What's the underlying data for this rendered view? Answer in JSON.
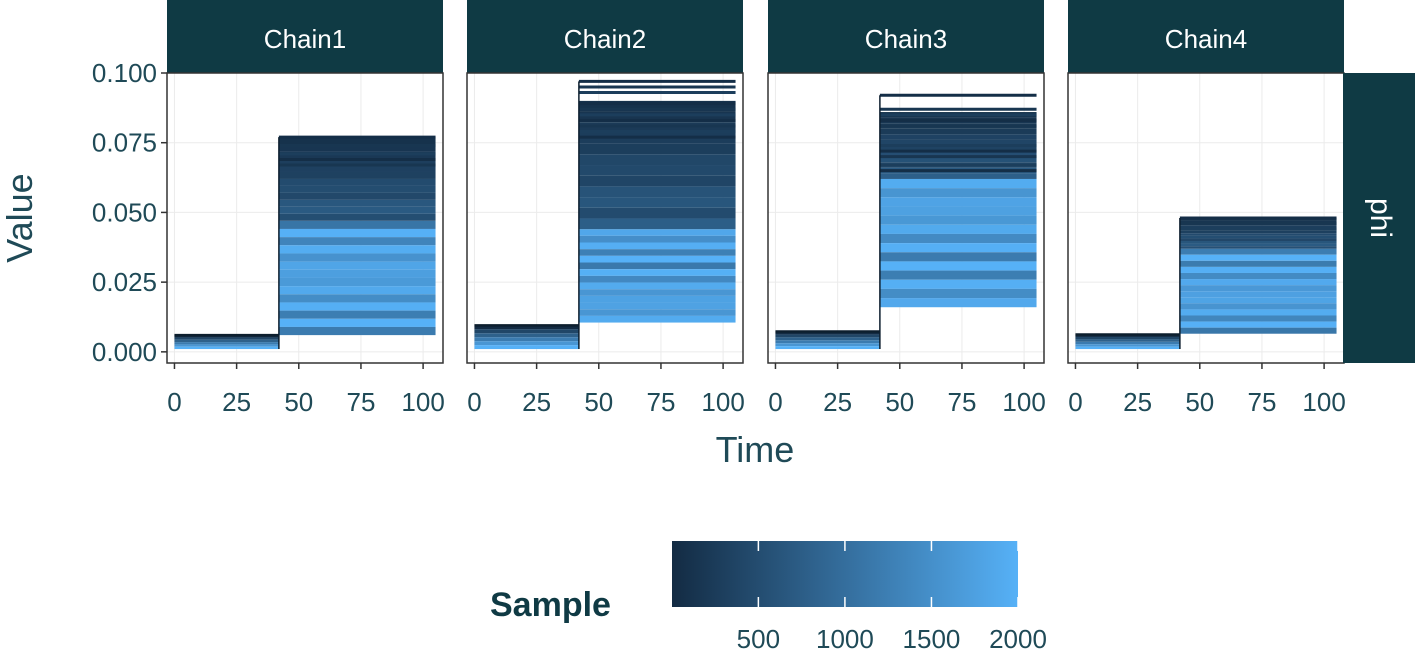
{
  "chart_data": {
    "type": "line",
    "subtype": "step",
    "facet_labels": [
      "Chain1",
      "Chain2",
      "Chain3",
      "Chain4"
    ],
    "row_strip": "phi",
    "xlabel": "Time",
    "ylabel": "Value",
    "xlim": [
      -3,
      108
    ],
    "ylim": [
      -0.004,
      0.1
    ],
    "x_ticks": [
      0,
      25,
      50,
      75,
      100
    ],
    "y_ticks": [
      0.0,
      0.025,
      0.05,
      0.075,
      0.1
    ],
    "x_tick_labels": [
      "0",
      "25",
      "50",
      "75",
      "100"
    ],
    "y_tick_labels": [
      "0.000",
      "0.025",
      "0.050",
      "0.075",
      "0.100"
    ],
    "change_time": 42,
    "end_time": 105,
    "panels": [
      {
        "name": "Chain1",
        "first_segment": {
          "x_start": 0,
          "x_end": 42,
          "y_min": 0.001,
          "y_max": 0.006
        },
        "second_segment": {
          "x_start": 42,
          "x_end": 105,
          "y_min": 0.006,
          "y_max": 0.077
        },
        "dark_band": [
          0.047,
          0.077
        ],
        "light_band": [
          0.006,
          0.047
        ],
        "outlier_lines": [
          0.077,
          0.074,
          0.071,
          0.069,
          0.067
        ]
      },
      {
        "name": "Chain2",
        "first_segment": {
          "x_start": 0,
          "x_end": 42,
          "y_min": 0.001,
          "y_max": 0.0095
        },
        "second_segment": {
          "x_start": 42,
          "x_end": 105,
          "y_min": 0.0105,
          "y_max": 0.097
        },
        "dark_band": [
          0.044,
          0.09
        ],
        "light_band": [
          0.0105,
          0.044
        ],
        "outlier_lines": [
          0.097,
          0.095,
          0.093,
          0.089,
          0.087,
          0.085,
          0.083,
          0.081,
          0.079,
          0.077
        ]
      },
      {
        "name": "Chain3",
        "first_segment": {
          "x_start": 0,
          "x_end": 42,
          "y_min": 0.001,
          "y_max": 0.0073
        },
        "second_segment": {
          "x_start": 42,
          "x_end": 105,
          "y_min": 0.016,
          "y_max": 0.092
        },
        "dark_band": [
          0.062,
          0.086
        ],
        "light_band": [
          0.016,
          0.062
        ],
        "outlier_lines": [
          0.092,
          0.087,
          0.085,
          0.083,
          0.081,
          0.074,
          0.072,
          0.07,
          0.067,
          0.065
        ]
      },
      {
        "name": "Chain4",
        "first_segment": {
          "x_start": 0,
          "x_end": 42,
          "y_min": 0.001,
          "y_max": 0.0062
        },
        "second_segment": {
          "x_start": 42,
          "x_end": 105,
          "y_min": 0.0065,
          "y_max": 0.048
        },
        "dark_band": [
          0.037,
          0.048
        ],
        "light_band": [
          0.0065,
          0.037
        ],
        "outlier_lines": [
          0.048,
          0.046,
          0.044
        ]
      }
    ],
    "colorbar": {
      "title": "Sample",
      "min": 1,
      "max": 2000,
      "ticks": [
        500,
        1000,
        1500,
        2000
      ],
      "tick_labels": [
        "500",
        "1000",
        "1500",
        "2000"
      ],
      "low_color": "#132b43",
      "high_color": "#56b1f7"
    },
    "colors": {
      "strip_fill": "#0f3a44",
      "panel_border": "#333333",
      "grid": "#ebebeb",
      "text": "#1f4a57"
    }
  }
}
